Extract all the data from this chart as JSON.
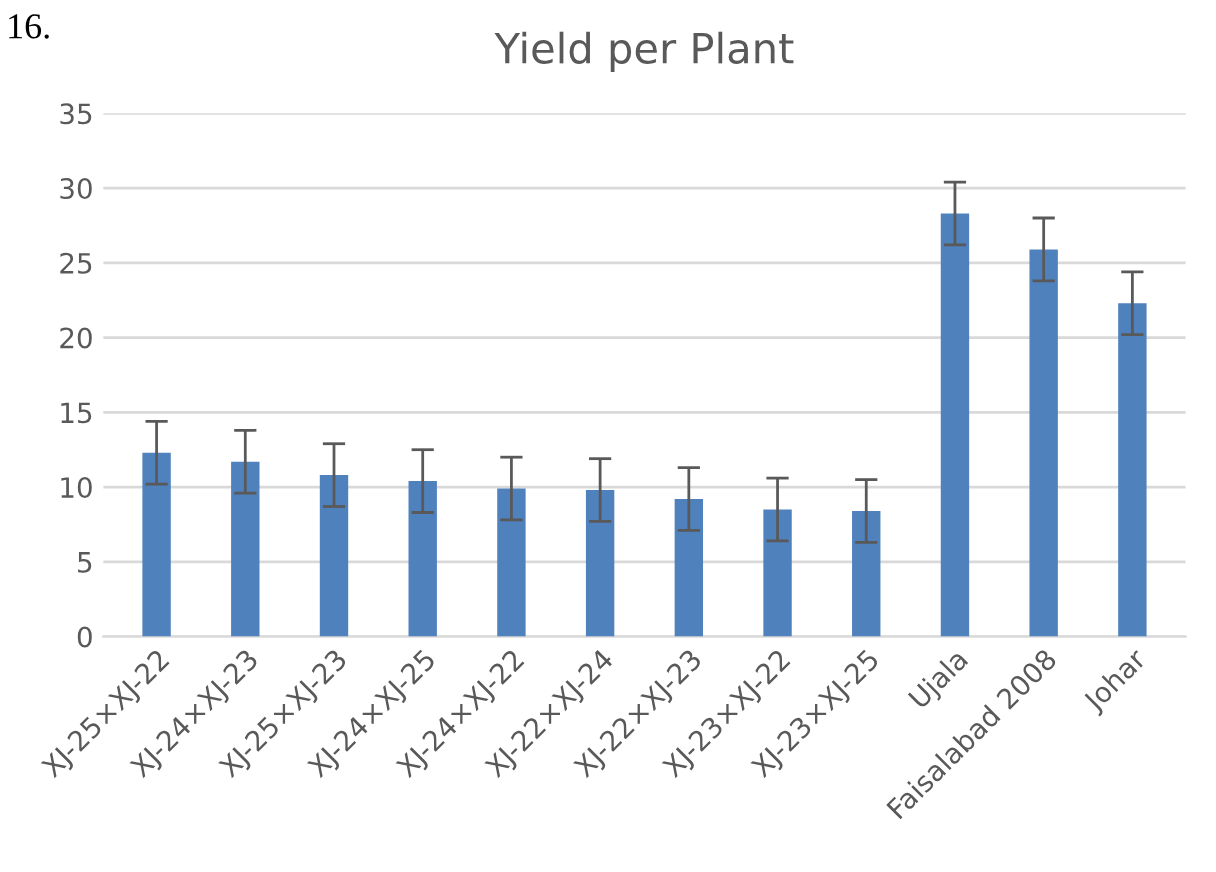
{
  "chart_data": {
    "type": "bar",
    "title": "Yield per Plant",
    "annotations": [
      "16."
    ],
    "categories": [
      "XJ-25×XJ-22",
      "XJ-24×XJ-23",
      "XJ-25×XJ-23",
      "XJ-24×XJ-25",
      "XJ-24×XJ-22",
      "XJ-22×XJ-24",
      "XJ-22×XJ-23",
      "XJ-23×XJ-22",
      "XJ-23×XJ-25",
      "Ujala",
      "Faisalabad 2008",
      "Johar"
    ],
    "values": [
      12.3,
      11.7,
      10.8,
      10.4,
      9.9,
      9.8,
      9.2,
      8.5,
      8.4,
      28.3,
      25.9,
      22.3
    ],
    "errors": [
      2.1,
      2.1,
      2.1,
      2.1,
      2.1,
      2.1,
      2.1,
      2.1,
      2.1,
      2.1,
      2.1,
      2.1
    ],
    "color": "#4f81bd",
    "ylim": [
      0,
      35
    ],
    "yticks": [
      0,
      5,
      10,
      15,
      20,
      25,
      30,
      35
    ],
    "grid": "y",
    "legend": false
  }
}
